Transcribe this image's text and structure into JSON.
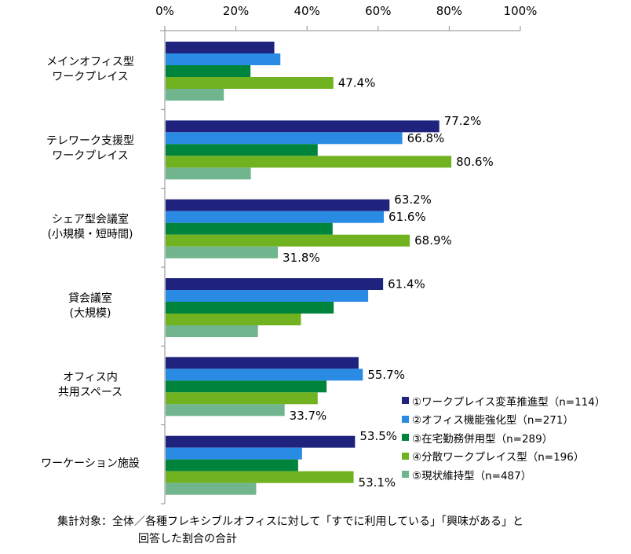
{
  "chart_data": {
    "type": "bar",
    "orientation": "horizontal",
    "title": "",
    "xlabel": "",
    "ylabel": "",
    "xlim": [
      0,
      100
    ],
    "x_ticks": [
      "0%",
      "20%",
      "40%",
      "60%",
      "80%",
      "100%"
    ],
    "x_tick_values": [
      0,
      20,
      40,
      60,
      80,
      100
    ],
    "grid": false,
    "legend_position": "bottom-right",
    "categories": [
      [
        "メインオフィス型",
        "ワークプレイス"
      ],
      [
        "テレワーク支援型",
        "ワークプレイス"
      ],
      [
        "シェア型会議室",
        "(小規模・短時間)"
      ],
      [
        "貸会議室",
        "(大規模)"
      ],
      [
        "オフィス内",
        "共用スペース"
      ],
      [
        "ワーケーション施設"
      ]
    ],
    "series": [
      {
        "name": "①ワークプレイス変革推進型（n=114）",
        "color": "#1F237E",
        "values": [
          30.8,
          77.2,
          63.2,
          61.4,
          54.5,
          53.5
        ],
        "labels": [
          null,
          "77.2%",
          "63.2%",
          "61.4%",
          null,
          "53.5%"
        ]
      },
      {
        "name": "②オフィス機能強化型（n=271）",
        "color": "#2A8BE4",
        "values": [
          32.5,
          66.8,
          61.6,
          57.2,
          55.7,
          38.6
        ],
        "labels": [
          null,
          "66.8%",
          "61.6%",
          null,
          "55.7%",
          null
        ]
      },
      {
        "name": "③在宅勤務併用型（n=289）",
        "color": "#00843C",
        "values": [
          24.1,
          43.0,
          47.2,
          47.5,
          45.5,
          37.5
        ],
        "labels": [
          null,
          null,
          null,
          null,
          null,
          null
        ]
      },
      {
        "name": "④分散ワークプレイス型（n=196）",
        "color": "#70B21F",
        "values": [
          47.4,
          80.6,
          68.9,
          38.3,
          43.0,
          53.1
        ],
        "labels": [
          "47.4%",
          "80.6%",
          "68.9%",
          null,
          null,
          "53.1%"
        ]
      },
      {
        "name": "⑤現状維持型（n=487）",
        "color": "#70B58E",
        "values": [
          16.6,
          24.2,
          31.8,
          26.2,
          33.7,
          25.7
        ],
        "labels": [
          null,
          null,
          "31.8%",
          null,
          "33.7%",
          null
        ]
      }
    ]
  },
  "footnote": {
    "line1": "集計対象：全体／各種フレキシブルオフィスに対して「すでに利用している」「興味がある」と",
    "line2": "回答した割合の合計"
  }
}
